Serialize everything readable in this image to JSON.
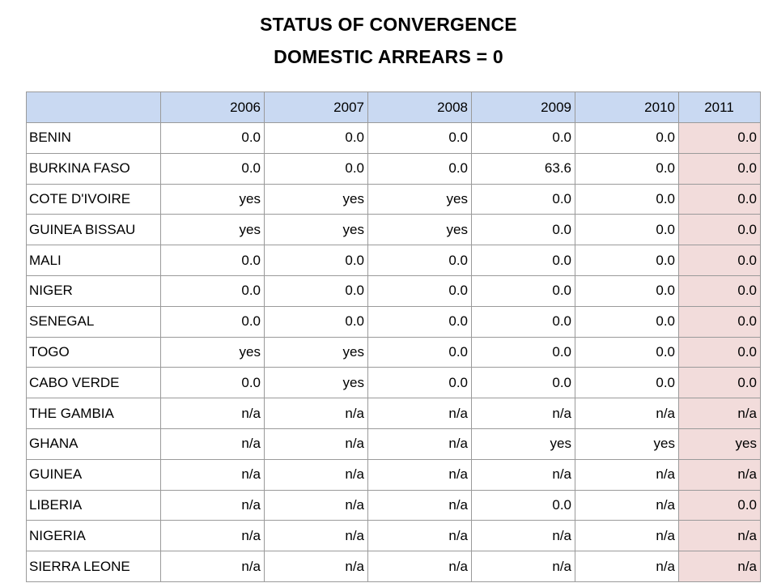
{
  "title": {
    "line1": "STATUS OF CONVERGENCE",
    "line2": "DOMESTIC ARREARS = 0"
  },
  "table": {
    "header": [
      "",
      "2006",
      "2007",
      "2008",
      "2009",
      "2010",
      "2011"
    ],
    "rows": [
      [
        "BENIN",
        "0.0",
        "0.0",
        "0.0",
        "0.0",
        "0.0",
        "0.0"
      ],
      [
        "BURKINA FASO",
        "0.0",
        "0.0",
        "0.0",
        "63.6",
        "0.0",
        "0.0"
      ],
      [
        "COTE D'IVOIRE",
        "yes",
        "yes",
        "yes",
        "0.0",
        "0.0",
        "0.0"
      ],
      [
        "GUINEA BISSAU",
        "yes",
        "yes",
        "yes",
        "0.0",
        "0.0",
        "0.0"
      ],
      [
        "MALI",
        "0.0",
        "0.0",
        "0.0",
        "0.0",
        "0.0",
        "0.0"
      ],
      [
        "NIGER",
        "0.0",
        "0.0",
        "0.0",
        "0.0",
        "0.0",
        "0.0"
      ],
      [
        "SENEGAL",
        "0.0",
        "0.0",
        "0.0",
        "0.0",
        "0.0",
        "0.0"
      ],
      [
        "TOGO",
        "yes",
        "yes",
        "0.0",
        "0.0",
        "0.0",
        "0.0"
      ],
      [
        "CABO VERDE",
        "0.0",
        "yes",
        "0.0",
        "0.0",
        "0.0",
        "0.0"
      ],
      [
        "THE GAMBIA",
        "n/a",
        "n/a",
        "n/a",
        "n/a",
        "n/a",
        "n/a"
      ],
      [
        "GHANA",
        "n/a",
        "n/a",
        "n/a",
        "yes",
        "yes",
        "yes"
      ],
      [
        "GUINEA",
        "n/a",
        "n/a",
        "n/a",
        "n/a",
        "n/a",
        "n/a"
      ],
      [
        "LIBERIA",
        "n/a",
        "n/a",
        "n/a",
        "0.0",
        "n/a",
        "0.0"
      ],
      [
        "NIGERIA",
        "n/a",
        "n/a",
        "n/a",
        "n/a",
        "n/a",
        "n/a"
      ],
      [
        "SIERRA LEONE",
        "n/a",
        "n/a",
        "n/a",
        "n/a",
        "n/a",
        "n/a"
      ]
    ]
  },
  "colors": {
    "header_bg": "#c9d9f2",
    "highlight_col_bg": "#f2dcdb",
    "grid": "#9a9a9a"
  }
}
